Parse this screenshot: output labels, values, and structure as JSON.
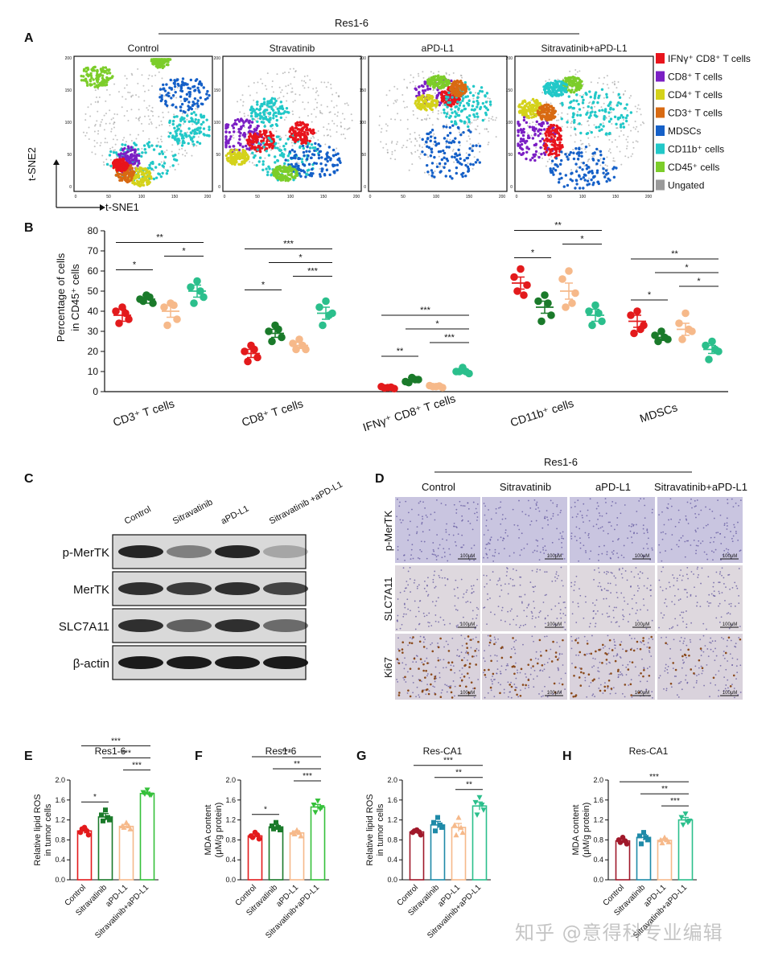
{
  "watermark": "知乎 @意得科专业编辑",
  "panelA": {
    "letter": "A",
    "group_title": "Res1-6",
    "plots": [
      "Control",
      "Stravatinib",
      "aPD-L1",
      "Sitravatinib+aPD-L1"
    ],
    "axis_x": "t-SNE1",
    "axis_y": "t-SNE2",
    "ticks_x": [
      "0",
      "50",
      "100",
      "150",
      "200"
    ],
    "ticks_y": [
      "0",
      "50",
      "100",
      "150",
      "200"
    ],
    "legend": [
      {
        "label": "IFNγ⁺ CD8⁺ T cells",
        "color": "#e8141c"
      },
      {
        "label": "CD8⁺ T cells",
        "color": "#7b1fc4"
      },
      {
        "label": "CD4⁺ T cells",
        "color": "#d4d21a"
      },
      {
        "label": "CD3⁺ T cells",
        "color": "#d86a12"
      },
      {
        "label": "MDSCs",
        "color": "#1560c8"
      },
      {
        "label": "CD11b⁺  cells",
        "color": "#22c8c8"
      },
      {
        "label": "CD45⁺  cells",
        "color": "#7ccd2a"
      },
      {
        "label": "Ungated",
        "color": "#9a9a9a"
      }
    ]
  },
  "panelB": {
    "letter": "B",
    "ylabel": "Percentage of cells in CD45⁺ cells",
    "ylabel_lines": [
      "Percentage of cells",
      "in CD45⁺ cells"
    ],
    "yticks": [
      "0",
      "10",
      "20",
      "30",
      "40",
      "50",
      "60",
      "70",
      "80"
    ],
    "groups": [
      "CD3⁺ T cells",
      "CD8⁺ T cells",
      "IFNγ⁺ CD8⁺ T cells",
      "CD11b⁺ cells",
      "MDSCs"
    ]
  },
  "panelC": {
    "letter": "C",
    "lanes": [
      "Control",
      "Sitravatinib",
      "aPD-L1",
      "Sitravatinib +aPD-L1"
    ],
    "rows": [
      "p-MerTK",
      "MerTK",
      "SLC7A11",
      "β-actin"
    ]
  },
  "panelD": {
    "letter": "D",
    "group_title": "Res1-6",
    "columns": [
      "Control",
      "Sitravatinib",
      "aPD-L1",
      "Sitravatinib+aPD-L1"
    ],
    "rows": [
      "p-MerTK",
      "SLC7A11",
      "Ki67"
    ],
    "scalebar": "100μM"
  },
  "small_panels": [
    {
      "letter": "E",
      "title": "Res1-6",
      "ylabel": [
        "Relative lipid ROS",
        "in tumor cells"
      ],
      "yticks": [
        "0.0",
        "0.4",
        "0.8",
        "1.2",
        "1.6",
        "2.0"
      ]
    },
    {
      "letter": "F",
      "title": "Res1-6",
      "ylabel": [
        "MDA content",
        "(μM/g protein)"
      ],
      "yticks": [
        "0.0",
        "0.4",
        "0.8",
        "1.2",
        "1.6",
        "2.0"
      ]
    },
    {
      "letter": "G",
      "title": "Res-CA1",
      "ylabel": [
        "Relative lipid ROS",
        "in tumor cells"
      ],
      "yticks": [
        "0.0",
        "0.4",
        "0.8",
        "1.2",
        "1.6",
        "2.0"
      ]
    },
    {
      "letter": "H",
      "title": "Res-CA1",
      "ylabel": [
        "MDA content",
        "(μM/g protein)"
      ],
      "yticks": [
        "0.0",
        "0.4",
        "0.8",
        "1.2",
        "1.6",
        "2.0"
      ]
    }
  ],
  "small_categories": [
    "Control",
    "Sitravatinib",
    "aPD-L1",
    "Sitravatinib+aPD-L1"
  ],
  "chart_data": [
    {
      "type": "scatter",
      "panel": "B",
      "ylabel": "Percentage of cells in CD45⁺ cells",
      "ylim": [
        0,
        80
      ],
      "groups": [
        "CD3⁺ T cells",
        "CD8⁺ T cells",
        "IFNγ⁺ CD8⁺ T cells",
        "CD11b⁺ cells",
        "MDSCs"
      ],
      "treatment_colors": [
        "#e31a1c",
        "#1a7a2a",
        "#f6b98a",
        "#2bbf8c"
      ],
      "data": [
        {
          "group": "CD3⁺ T cells",
          "means": [
            38,
            46,
            40,
            50
          ],
          "sems": [
            3,
            2,
            3,
            3
          ],
          "points": [
            [
              42,
              40,
              36,
              34,
              39
            ],
            [
              48,
              46,
              44,
              45,
              47
            ],
            [
              44,
              42,
              36,
              33,
              43
            ],
            [
              55,
              52,
              47,
              44,
              50
            ]
          ]
        },
        {
          "group": "CD8⁺ T cells",
          "means": [
            19,
            29,
            23,
            39
          ],
          "sems": [
            2,
            2,
            1.5,
            3
          ],
          "points": [
            [
              23,
              20,
              17,
              15,
              21
            ],
            [
              33,
              30,
              27,
              25,
              31
            ],
            [
              26,
              24,
              21,
              21,
              23
            ],
            [
              45,
              42,
              39,
              33,
              38
            ]
          ]
        },
        {
          "group": "IFNγ⁺ CD8⁺ T cells",
          "means": [
            2,
            6,
            2.5,
            10
          ],
          "sems": [
            0.5,
            1,
            0.5,
            1
          ],
          "points": [
            [
              2,
              2.5,
              1.5,
              1.8,
              2.2
            ],
            [
              7,
              5,
              6,
              4.5,
              6
            ],
            [
              2.5,
              3,
              2,
              2.5,
              2.8
            ],
            [
              12,
              10,
              9,
              10,
              10
            ]
          ]
        },
        {
          "group": "CD11b⁺ cells",
          "means": [
            54,
            42,
            50,
            38
          ],
          "sems": [
            3,
            3,
            4,
            3
          ],
          "points": [
            [
              61,
              57,
              53,
              50,
              48
            ],
            [
              48,
              45,
              38,
              35,
              44
            ],
            [
              60,
              56,
              49,
              42,
              44
            ],
            [
              43,
              40,
              35,
              33,
              39
            ]
          ]
        },
        {
          "group": "MDSCs",
          "means": [
            35,
            27,
            31,
            21
          ],
          "sems": [
            3,
            1.5,
            3,
            2
          ],
          "points": [
            [
              40,
              38,
              33,
              29,
              31
            ],
            [
              30,
              28,
              26,
              25,
              27
            ],
            [
              39,
              34,
              30,
              26,
              31
            ],
            [
              25,
              23,
              20,
              16,
              21
            ]
          ]
        }
      ],
      "significance": [
        {
          "group": 0,
          "from": 0,
          "to": 1,
          "label": "*"
        },
        {
          "group": 0,
          "from": 2,
          "to": 3,
          "label": "*"
        },
        {
          "group": 0,
          "from": 0,
          "to": 3,
          "label": "**"
        },
        {
          "group": 1,
          "from": 0,
          "to": 1,
          "label": "*"
        },
        {
          "group": 1,
          "from": 2,
          "to": 3,
          "label": "***"
        },
        {
          "group": 1,
          "from": 1,
          "to": 3,
          "label": "*"
        },
        {
          "group": 1,
          "from": 0,
          "to": 3,
          "label": "***"
        },
        {
          "group": 2,
          "from": 0,
          "to": 1,
          "label": "**"
        },
        {
          "group": 2,
          "from": 2,
          "to": 3,
          "label": "***"
        },
        {
          "group": 2,
          "from": 1,
          "to": 3,
          "label": "*"
        },
        {
          "group": 2,
          "from": 0,
          "to": 3,
          "label": "***"
        },
        {
          "group": 3,
          "from": 0,
          "to": 1,
          "label": "*"
        },
        {
          "group": 3,
          "from": 2,
          "to": 3,
          "label": "*"
        },
        {
          "group": 3,
          "from": 0,
          "to": 3,
          "label": "**"
        },
        {
          "group": 4,
          "from": 0,
          "to": 1,
          "label": "*"
        },
        {
          "group": 4,
          "from": 2,
          "to": 3,
          "label": "*"
        },
        {
          "group": 4,
          "from": 1,
          "to": 3,
          "label": "*"
        },
        {
          "group": 4,
          "from": 0,
          "to": 3,
          "label": "**"
        }
      ]
    },
    {
      "type": "bar",
      "panel": "E",
      "title": "Res1-6",
      "ylabel": "Relative lipid ROS in tumor cells",
      "categories": [
        "Control",
        "Sitravatinib",
        "aPD-L1",
        "Sitravatinib+aPD-L1"
      ],
      "values": [
        0.98,
        1.26,
        1.07,
        1.73
      ],
      "sems": [
        0.05,
        0.07,
        0.04,
        0.03
      ],
      "ylim": [
        0,
        2.0
      ],
      "points": [
        [
          1.05,
          0.95,
          0.9,
          1.02,
          0.98
        ],
        [
          1.4,
          1.3,
          1.2,
          1.18,
          1.25
        ],
        [
          1.15,
          1.08,
          1.02,
          1.05,
          1.08
        ],
        [
          1.8,
          1.75,
          1.7,
          1.72,
          1.7
        ]
      ],
      "colors": [
        "#e31a1c",
        "#1a7a2a",
        "#f6b98a",
        "#35c03a"
      ],
      "significance": [
        {
          "from": 0,
          "to": 1,
          "label": "*"
        },
        {
          "from": 0,
          "to": 3,
          "label": "***"
        },
        {
          "from": 1,
          "to": 3,
          "label": "***"
        },
        {
          "from": 2,
          "to": 3,
          "label": "***"
        }
      ]
    },
    {
      "type": "bar",
      "panel": "F",
      "title": "Res1-6",
      "ylabel": "MDA content (μM/g protein)",
      "categories": [
        "Control",
        "Sitravatinib",
        "aPD-L1",
        "Sitravatinib+aPD-L1"
      ],
      "values": [
        0.88,
        1.06,
        0.94,
        1.46
      ],
      "sems": [
        0.04,
        0.05,
        0.04,
        0.05
      ],
      "ylim": [
        0,
        2.0
      ],
      "points": [
        [
          0.95,
          0.88,
          0.82,
          0.85,
          0.9
        ],
        [
          1.15,
          1.08,
          1.0,
          1.02,
          1.05
        ],
        [
          1.0,
          0.95,
          0.88,
          0.92,
          0.95
        ],
        [
          1.58,
          1.5,
          1.45,
          1.35,
          1.42
        ]
      ],
      "colors": [
        "#e31a1c",
        "#1a7a2a",
        "#f6b98a",
        "#35c03a"
      ],
      "significance": [
        {
          "from": 0,
          "to": 1,
          "label": "*"
        },
        {
          "from": 0,
          "to": 3,
          "label": "***"
        },
        {
          "from": 1,
          "to": 3,
          "label": "**"
        },
        {
          "from": 2,
          "to": 3,
          "label": "***"
        }
      ]
    },
    {
      "type": "bar",
      "panel": "G",
      "title": "Res-CA1",
      "ylabel": "Relative lipid ROS in tumor cells",
      "categories": [
        "Control",
        "Sitravatinib",
        "aPD-L1",
        "Sitravatinib+aPD-L1"
      ],
      "values": [
        0.96,
        1.1,
        1.05,
        1.48
      ],
      "sems": [
        0.03,
        0.07,
        0.08,
        0.08
      ],
      "ylim": [
        0,
        2.0
      ],
      "points": [
        [
          1.0,
          0.95,
          0.9,
          0.98,
          0.96
        ],
        [
          1.25,
          1.15,
          1.05,
          0.98,
          1.1
        ],
        [
          1.25,
          1.1,
          0.95,
          0.9,
          1.05
        ],
        [
          1.65,
          1.55,
          1.4,
          1.3,
          1.5
        ]
      ],
      "colors": [
        "#a0182a",
        "#1f8aa8",
        "#f6b98a",
        "#2bbf8c"
      ],
      "significance": [
        {
          "from": 0,
          "to": 3,
          "label": "***"
        },
        {
          "from": 1,
          "to": 3,
          "label": "**"
        },
        {
          "from": 2,
          "to": 3,
          "label": "**"
        }
      ]
    },
    {
      "type": "bar",
      "panel": "H",
      "title": "Res-CA1",
      "ylabel": "MDA content (μM/g protein)",
      "categories": [
        "Control",
        "Sitravatinib",
        "aPD-L1",
        "Sitravatinib+aPD-L1"
      ],
      "values": [
        0.78,
        0.85,
        0.79,
        1.2
      ],
      "sems": [
        0.04,
        0.06,
        0.03,
        0.05
      ],
      "ylim": [
        0,
        2.0
      ],
      "points": [
        [
          0.85,
          0.8,
          0.72,
          0.75,
          0.78
        ],
        [
          0.95,
          0.88,
          0.8,
          0.72,
          0.85
        ],
        [
          0.85,
          0.8,
          0.76,
          0.74,
          0.8
        ],
        [
          1.32,
          1.25,
          1.18,
          1.1,
          1.15
        ]
      ],
      "colors": [
        "#a0182a",
        "#1f8aa8",
        "#f6b98a",
        "#2bbf8c"
      ],
      "significance": [
        {
          "from": 0,
          "to": 3,
          "label": "***"
        },
        {
          "from": 1,
          "to": 3,
          "label": "**"
        },
        {
          "from": 2,
          "to": 3,
          "label": "***"
        }
      ]
    }
  ]
}
